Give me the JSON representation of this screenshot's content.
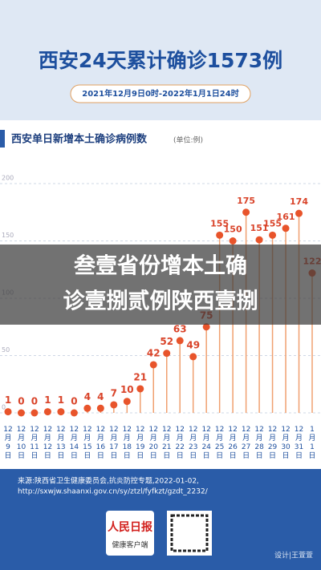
{
  "header": {
    "title": "西安24天累计确诊1573例",
    "subtitle": "2021年12月9日0时-2022年1月1日24时"
  },
  "chart_data": {
    "type": "lollipop",
    "title": "西安单日新增本土确诊病例数",
    "unit": "(单位:例)",
    "categories": [
      "12月9日",
      "12月10日",
      "12月11日",
      "12月12日",
      "12月13日",
      "12月14日",
      "12月15日",
      "12月16日",
      "12月17日",
      "12月18日",
      "12月19日",
      "12月20日",
      "12月21日",
      "12月22日",
      "12月23日",
      "12月24日",
      "12月25日",
      "12月26日",
      "12月27日",
      "12月28日",
      "12月29日",
      "12月30日",
      "12月31日",
      "1月1日"
    ],
    "values": [
      1,
      0,
      0,
      1,
      1,
      0,
      4,
      4,
      7,
      10,
      21,
      42,
      52,
      63,
      49,
      75,
      155,
      150,
      175,
      151,
      155,
      161,
      174,
      122
    ],
    "color": "#e8542b",
    "ylim": [
      0,
      200
    ],
    "yticks": [
      0,
      50,
      100,
      150,
      200
    ],
    "grid": true
  },
  "overlay": {
    "lines": [
      "叁壹省份增本土确",
      "诊壹捌贰例陕西壹捌"
    ]
  },
  "footer": {
    "source": [
      "来源:陕西省卫生健康委员会,抗炎防控专题,2022-01-02,",
      "http://sxwjw.shaanxi.gov.cn/sy/ztzl/fyfkzt/gzdt_2232/"
    ],
    "logo": "人民日报",
    "logo_sub": "健康客户端",
    "design": "设计|王萱萱"
  }
}
